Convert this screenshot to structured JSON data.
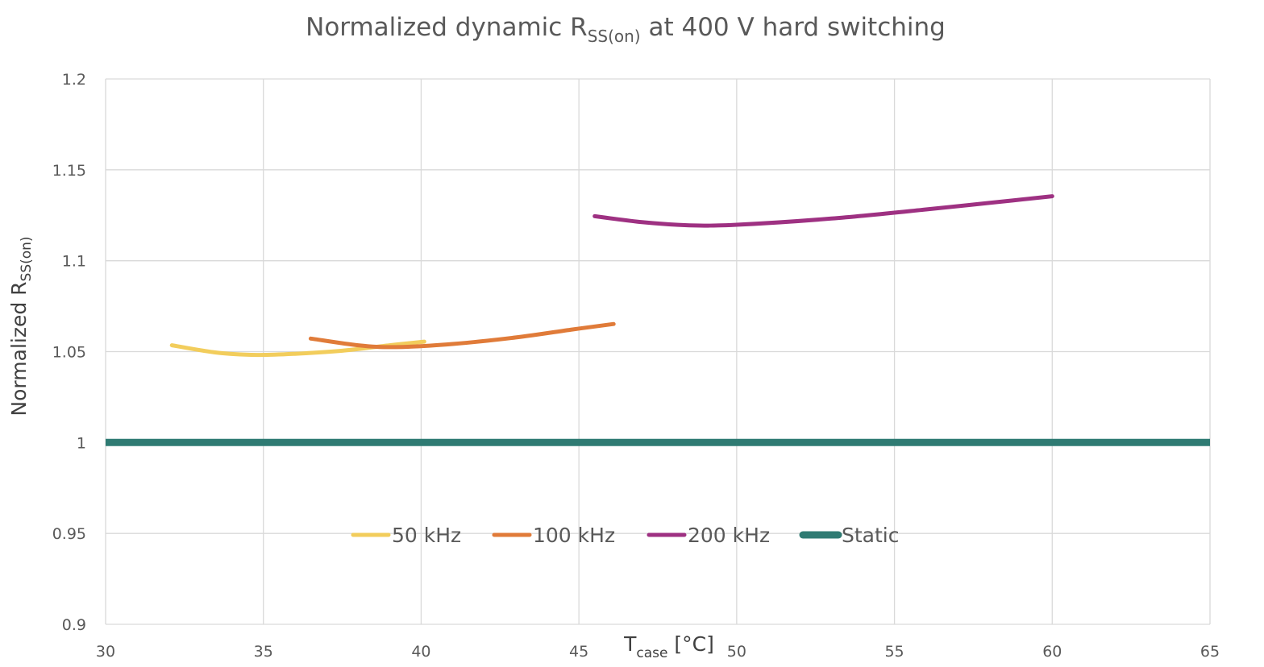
{
  "chart_data": {
    "type": "line",
    "title": {
      "main": "Normalized dynamic R",
      "sub": "SS(on)",
      "suffix": " at 400 V hard switching"
    },
    "xlabel": {
      "main": "T",
      "sub": "case",
      "suffix": " [°C]"
    },
    "ylabel": {
      "main": "Normalized R",
      "sub": "SS(on)"
    },
    "xlim": [
      30,
      65
    ],
    "ylim": [
      0.9,
      1.2
    ],
    "xticks": [
      30,
      35,
      40,
      45,
      50,
      55,
      60,
      65
    ],
    "yticks": [
      0.9,
      0.95,
      1,
      1.05,
      1.1,
      1.15,
      1.2
    ],
    "xtick_labels": [
      "30",
      "35",
      "40",
      "45",
      "50",
      "55",
      "60",
      "65"
    ],
    "ytick_labels": [
      "0.9",
      "0.95",
      "1",
      "1.05",
      "1.1",
      "1.15",
      "1.2"
    ],
    "grid": true,
    "legend_position": "inside-lower-center",
    "series": [
      {
        "name": "50 kHz",
        "color": "#f2cd5c",
        "x": [
          32.1,
          33.5,
          34.8,
          36,
          37.5,
          39,
          40.1
        ],
        "y": [
          1.0535,
          1.0495,
          1.0482,
          1.0488,
          1.0505,
          1.0535,
          1.0555
        ]
      },
      {
        "name": "100 kHz",
        "color": "#e07b39",
        "x": [
          36.5,
          38,
          39.2,
          41,
          43,
          44.8,
          46.1
        ],
        "y": [
          1.0572,
          1.0535,
          1.0525,
          1.0542,
          1.0578,
          1.0622,
          1.0652
        ]
      },
      {
        "name": "200 kHz",
        "color": "#9e3182",
        "x": [
          45.5,
          47,
          48.5,
          50,
          53,
          56,
          58,
          60
        ],
        "y": [
          1.1245,
          1.1212,
          1.1195,
          1.1198,
          1.1232,
          1.1282,
          1.1318,
          1.1355
        ]
      },
      {
        "name": "Static",
        "color": "#2f7b73",
        "x": [
          30,
          65
        ],
        "y": [
          1,
          1
        ]
      }
    ]
  }
}
